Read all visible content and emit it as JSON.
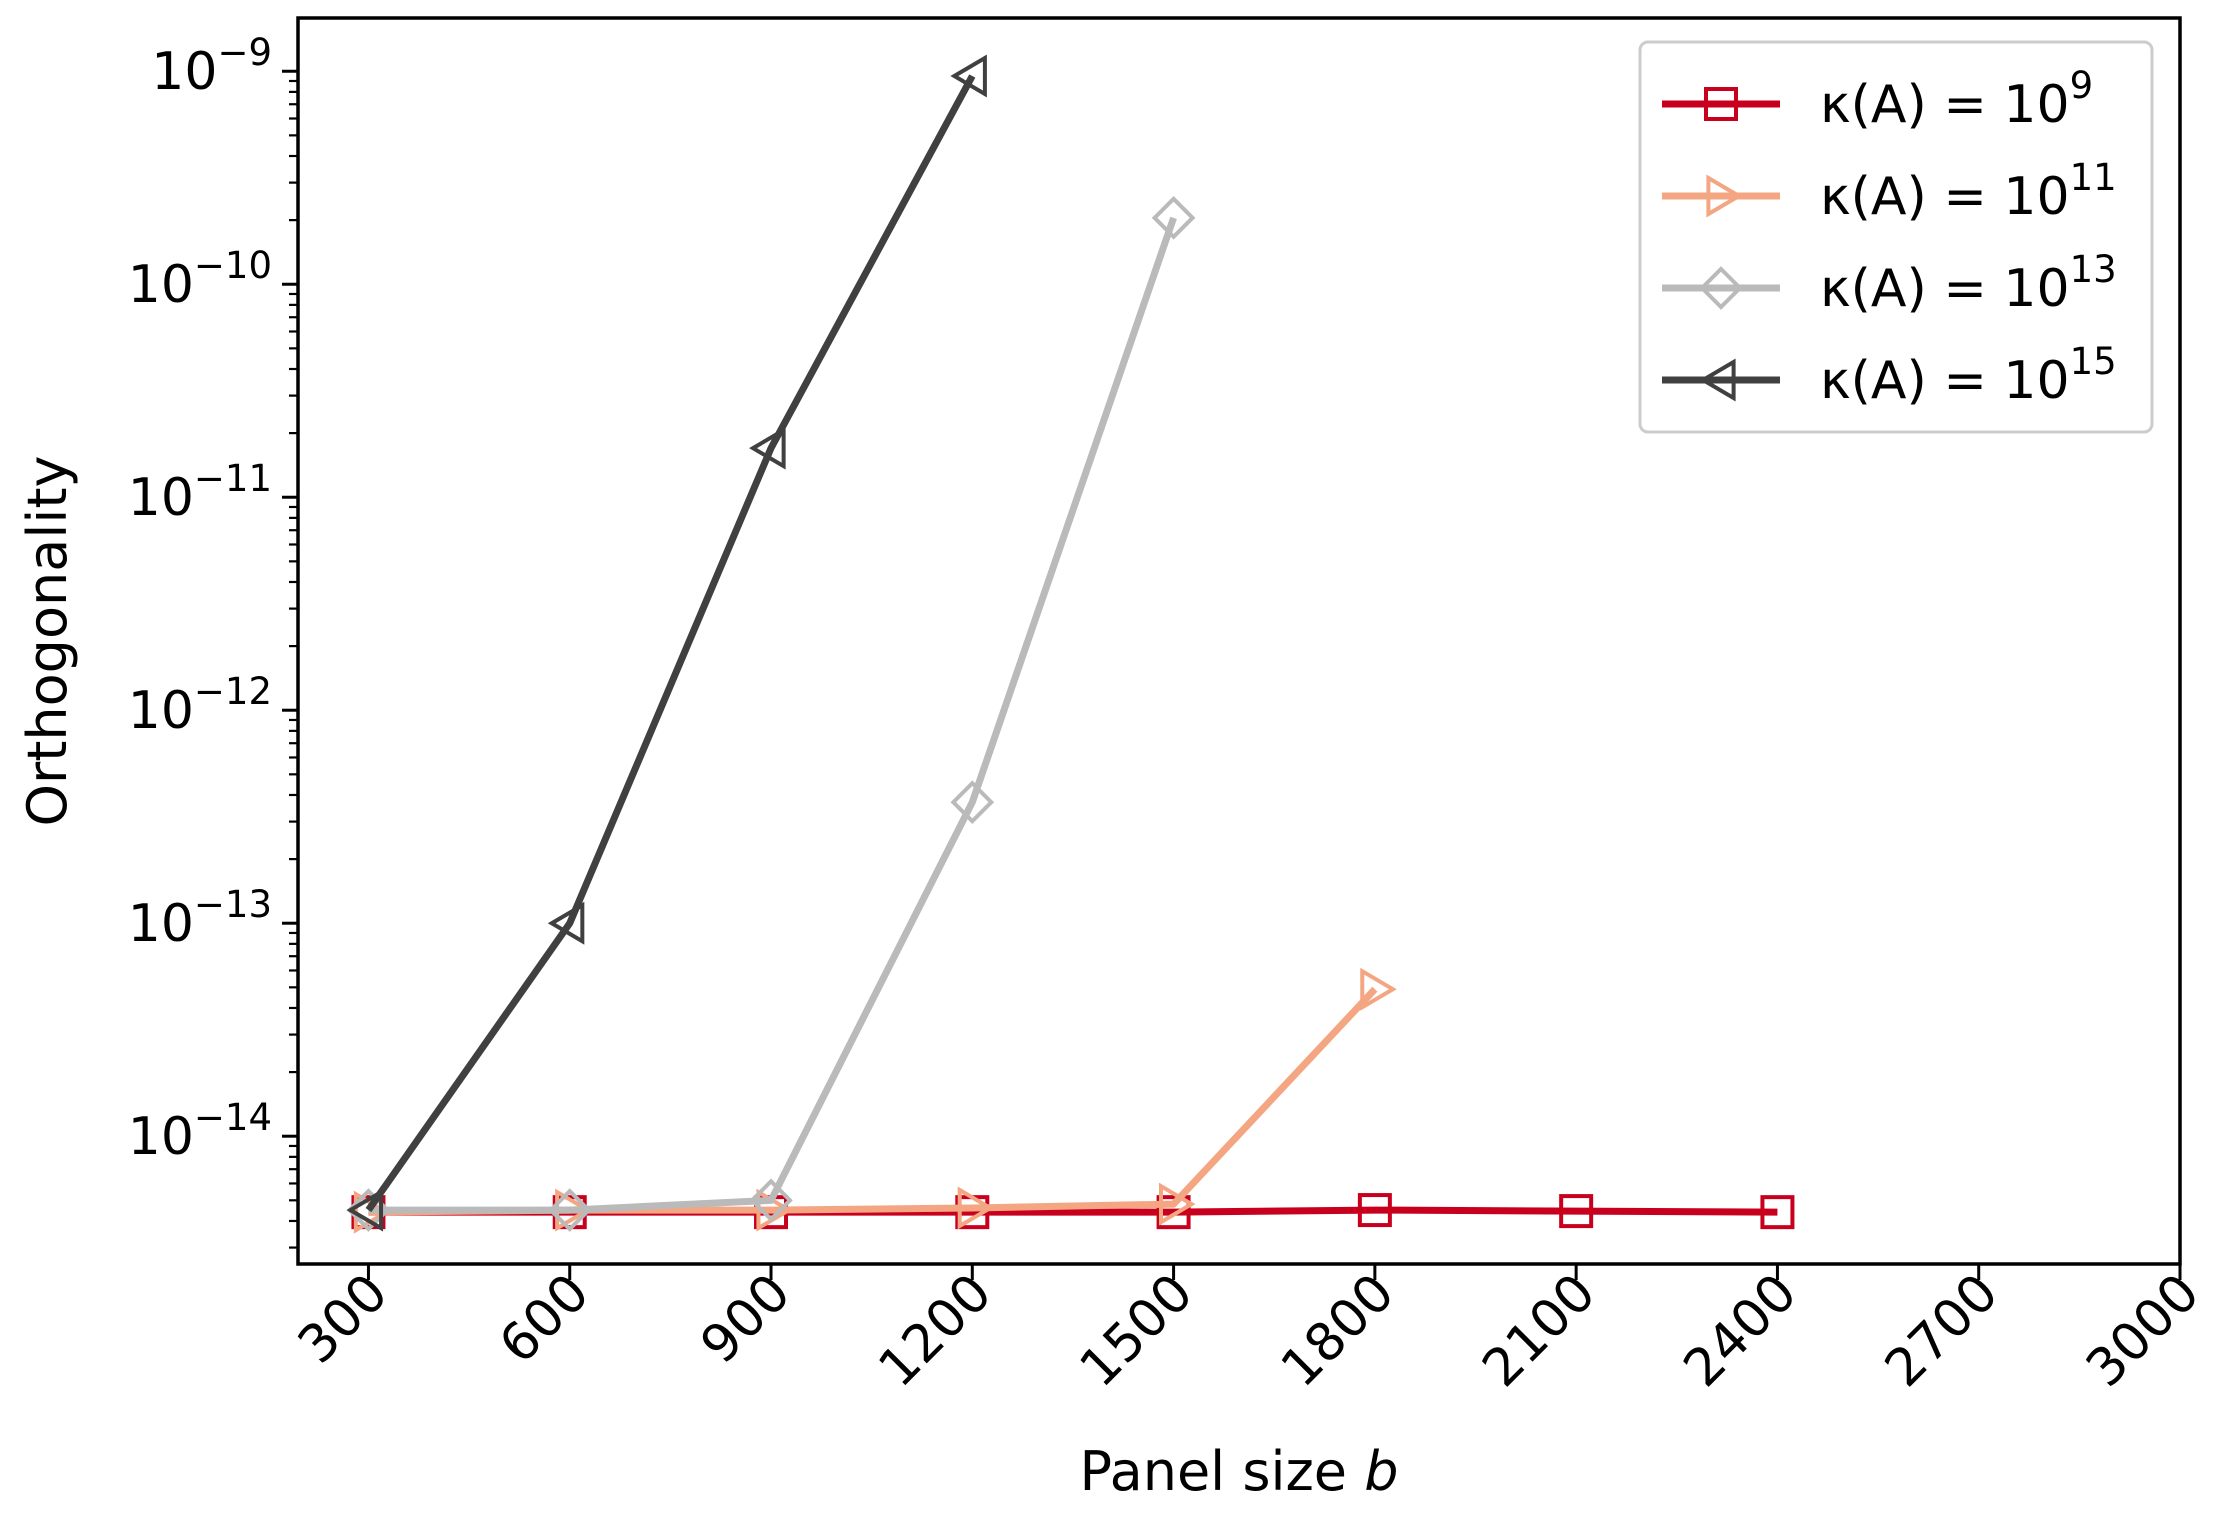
{
  "chart_data": {
    "type": "line",
    "xlabel": "Panel size",
    "xlabel_var": "b",
    "ylabel": "Orthogonality",
    "xscale": "linear",
    "yscale": "log",
    "xlim": [
      195,
      3000
    ],
    "ylim_exp": [
      -14.6,
      -8.75
    ],
    "xticks": [
      300,
      600,
      900,
      1200,
      1500,
      1800,
      2100,
      2400,
      2700,
      3000
    ],
    "xtick_labels": [
      "300",
      "600",
      "900",
      "1200",
      "1500",
      "1800",
      "2100",
      "2400",
      "2700",
      "3000"
    ],
    "xtick_rotation": -45,
    "yticks_exp": [
      -14,
      -13,
      -12,
      -11,
      -10,
      -9
    ],
    "ytick_labels": [
      {
        "base": "10",
        "exp": "−14"
      },
      {
        "base": "10",
        "exp": "−13"
      },
      {
        "base": "10",
        "exp": "−12"
      },
      {
        "base": "10",
        "exp": "−11"
      },
      {
        "base": "10",
        "exp": "−10"
      },
      {
        "base": "10",
        "exp": "−9"
      }
    ],
    "grid": false,
    "legend_position": "top-right",
    "series": [
      {
        "name_prefix": "κ(A) = 10",
        "name_exp": "9",
        "color": "#c8001e",
        "marker": "square",
        "x": [
          300,
          600,
          900,
          1200,
          1500,
          1800,
          2100,
          2400
        ],
        "y": [
          4.4e-15,
          4.4e-15,
          4.4e-15,
          4.4e-15,
          4.4e-15,
          4.5e-15,
          4.45e-15,
          4.4e-15
        ]
      },
      {
        "name_prefix": "κ(A) = 10",
        "name_exp": "11",
        "color": "#f4a582",
        "marker": "triangle-right",
        "x": [
          300,
          600,
          900,
          1200,
          1500,
          1800
        ],
        "y": [
          4.4e-15,
          4.5e-15,
          4.5e-15,
          4.6e-15,
          4.8e-15,
          4.9e-14
        ]
      },
      {
        "name_prefix": "κ(A) = 10",
        "name_exp": "13",
        "color": "#bababa",
        "marker": "diamond",
        "x": [
          300,
          600,
          900,
          1200,
          1500
        ],
        "y": [
          4.5e-15,
          4.5e-15,
          5e-15,
          3.7e-13,
          2.05e-10
        ]
      },
      {
        "name_prefix": "κ(A) = 10",
        "name_exp": "15",
        "color": "#404040",
        "marker": "triangle-left",
        "x": [
          300,
          600,
          900,
          1200
        ],
        "y": [
          4.5e-15,
          1e-13,
          1.7e-11,
          9.5e-10
        ]
      }
    ]
  }
}
